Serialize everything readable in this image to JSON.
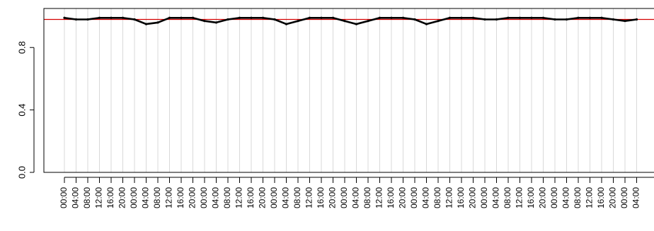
{
  "chart_data": {
    "type": "line",
    "title": "",
    "xlabel": "",
    "ylabel": "",
    "ylim": [
      0,
      1.05
    ],
    "yticks": [
      0.0,
      0.4,
      0.8
    ],
    "ytick_labels": [
      "0.0",
      "0.4",
      "0.8"
    ],
    "grid": "vertical",
    "x_tick_labels": [
      "00:00",
      "04:00",
      "08:00",
      "12:00",
      "16:00",
      "20:00",
      "00:00",
      "04:00",
      "08:00",
      "12:00",
      "16:00",
      "20:00",
      "00:00",
      "04:00",
      "08:00",
      "12:00",
      "16:00",
      "20:00",
      "00:00",
      "04:00",
      "08:00",
      "12:00",
      "16:00",
      "20:00",
      "00:00",
      "04:00",
      "08:00",
      "12:00",
      "16:00",
      "20:00",
      "00:00",
      "04:00",
      "08:00",
      "12:00",
      "16:00",
      "20:00",
      "00:00",
      "04:00",
      "08:00",
      "12:00",
      "16:00",
      "20:00",
      "00:00",
      "04:00",
      "08:00",
      "12:00",
      "16:00",
      "20:00",
      "00:00",
      "04:00"
    ],
    "reference_line": {
      "value": 0.98,
      "color": "#d40000"
    },
    "series": [
      {
        "color": "#000000",
        "x": [
          "00:00",
          "04:00",
          "08:00",
          "12:00",
          "16:00",
          "20:00",
          "00:00",
          "04:00",
          "08:00",
          "12:00",
          "16:00",
          "20:00",
          "00:00",
          "04:00",
          "08:00",
          "12:00",
          "16:00",
          "20:00",
          "00:00",
          "04:00",
          "08:00",
          "12:00",
          "16:00",
          "20:00",
          "00:00",
          "04:00",
          "08:00",
          "12:00",
          "16:00",
          "20:00",
          "00:00",
          "04:00",
          "08:00",
          "12:00",
          "16:00",
          "20:00",
          "00:00",
          "04:00",
          "08:00",
          "12:00",
          "16:00",
          "20:00",
          "00:00",
          "04:00",
          "08:00",
          "12:00",
          "16:00",
          "20:00",
          "00:00",
          "04:00"
        ],
        "values": [
          0.99,
          0.98,
          0.98,
          0.99,
          0.99,
          0.99,
          0.98,
          0.95,
          0.96,
          0.99,
          0.99,
          0.99,
          0.97,
          0.96,
          0.98,
          0.99,
          0.99,
          0.99,
          0.98,
          0.95,
          0.97,
          0.99,
          0.99,
          0.99,
          0.97,
          0.95,
          0.97,
          0.99,
          0.99,
          0.99,
          0.98,
          0.95,
          0.97,
          0.99,
          0.99,
          0.99,
          0.98,
          0.98,
          0.99,
          0.99,
          0.99,
          0.99,
          0.98,
          0.98,
          0.99,
          0.99,
          0.99,
          0.98,
          0.97,
          0.98
        ]
      }
    ]
  }
}
